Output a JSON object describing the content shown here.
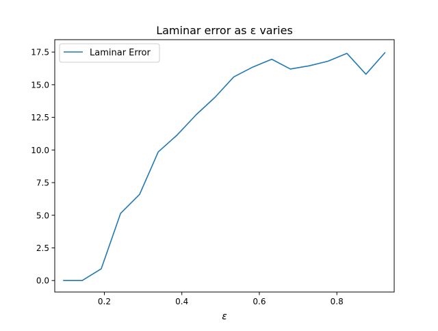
{
  "chart_data": {
    "type": "line",
    "title": "Laminar error as ε varies",
    "xlabel": "ε",
    "ylabel": "",
    "xlim": [
      0.072,
      0.948
    ],
    "ylim": [
      -0.88,
      18.45
    ],
    "xticks": [
      0.2,
      0.4,
      0.6,
      0.8
    ],
    "xtick_labels": [
      "0.2",
      "0.4",
      "0.6",
      "0.8"
    ],
    "yticks": [
      0,
      2.5,
      5,
      7.5,
      10,
      12.5,
      15,
      17.5
    ],
    "ytick_labels": [
      "0.0",
      "2.5",
      "5.0",
      "7.5",
      "10.0",
      "12.5",
      "15.0",
      "17.5"
    ],
    "grid": false,
    "legend_position": "upper-left",
    "series": [
      {
        "name": "Laminar Error",
        "color": "#1f77b4",
        "x": [
          0.095,
          0.143,
          0.192,
          0.242,
          0.291,
          0.339,
          0.388,
          0.437,
          0.486,
          0.534,
          0.583,
          0.632,
          0.68,
          0.729,
          0.777,
          0.826,
          0.875,
          0.924
        ],
        "y": [
          0.0,
          0.0,
          0.9,
          5.15,
          6.6,
          9.85,
          11.15,
          12.7,
          14.05,
          15.6,
          16.35,
          16.95,
          16.2,
          16.45,
          16.8,
          17.4,
          15.8,
          17.45
        ]
      }
    ]
  }
}
